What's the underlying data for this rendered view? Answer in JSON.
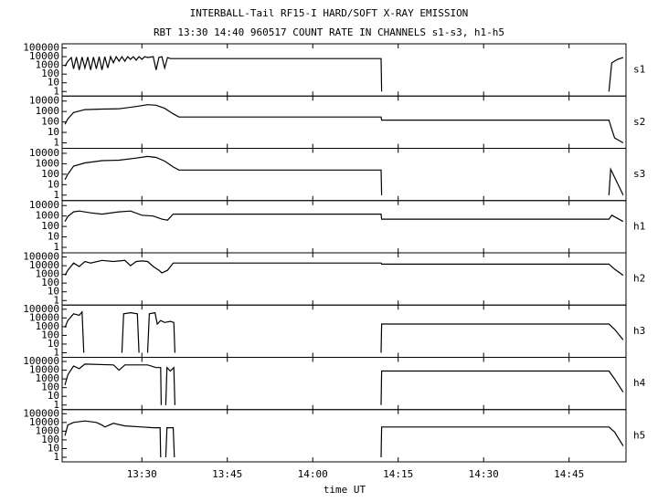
{
  "header": {
    "title": "INTERBALL-Tail RF15-I HARD/SOFT X-RAY EMISSION",
    "subtitle": "RBT 13:30 14:40 960517  COUNT RATE IN CHANNELS s1-s3, h1-h5"
  },
  "chart_data": [
    {
      "type": "line",
      "label": "s1",
      "log": true,
      "xlim": [
        796,
        895
      ],
      "ylim": [
        0.3,
        300000
      ],
      "yticks": [
        100000,
        10000,
        1000,
        100,
        10,
        1
      ],
      "x": [
        796.5,
        797,
        797.6,
        798,
        798.5,
        799,
        799.5,
        800,
        800.5,
        801,
        801.5,
        802,
        802.5,
        803,
        803.5,
        804,
        804.5,
        805,
        805.5,
        806,
        806.5,
        807,
        807.5,
        808,
        808.5,
        809,
        809.5,
        810,
        810.5,
        811,
        812,
        812.5,
        813,
        813.5,
        814,
        814.5,
        815,
        852,
        852.1,
        null,
        892,
        892.5,
        893.5,
        894.5
      ],
      "values": [
        800,
        3000,
        8000,
        400,
        9000,
        300,
        9000,
        500,
        9000,
        300,
        9000,
        400,
        10000,
        300,
        10000,
        500,
        10000,
        2000,
        10000,
        3000,
        10000,
        3000,
        10000,
        5000,
        10000,
        4000,
        10000,
        5000,
        10000,
        8000,
        10000,
        300,
        8000,
        10000,
        500,
        8000,
        6000,
        6000,
        1,
        null,
        1,
        2000,
        5000,
        8000
      ]
    },
    {
      "type": "line",
      "label": "s2",
      "log": true,
      "xlim": [
        796,
        895
      ],
      "ylim": [
        0.3,
        30000
      ],
      "yticks": [
        10000,
        1000,
        100,
        10,
        1
      ],
      "x": [
        796.5,
        797,
        798,
        800,
        803,
        806,
        809,
        811,
        812.5,
        814,
        815.5,
        816.5,
        852,
        852.1,
        892,
        892.5,
        893,
        894.5
      ],
      "values": [
        60,
        200,
        800,
        1500,
        1700,
        1800,
        3000,
        4500,
        4000,
        2000,
        600,
        300,
        300,
        150,
        150,
        20,
        3,
        1
      ]
    },
    {
      "type": "line",
      "label": "s3",
      "log": true,
      "xlim": [
        796,
        895
      ],
      "ylim": [
        0.3,
        30000
      ],
      "yticks": [
        10000,
        1000,
        100,
        10,
        1
      ],
      "x": [
        796.5,
        797,
        798,
        800,
        803,
        806,
        809,
        811,
        812.5,
        814,
        815.5,
        816.5,
        852,
        852.1,
        null,
        892,
        892.3,
        893,
        894.5
      ],
      "values": [
        30,
        100,
        600,
        1200,
        2000,
        2200,
        3500,
        5000,
        4000,
        1800,
        500,
        250,
        250,
        1,
        null,
        1,
        300,
        50,
        1
      ]
    },
    {
      "type": "line",
      "label": "h1",
      "log": true,
      "xlim": [
        796,
        895
      ],
      "ylim": [
        0.3,
        30000
      ],
      "yticks": [
        10000,
        1000,
        100,
        10,
        1
      ],
      "x": [
        796.5,
        797,
        798,
        799,
        801,
        803,
        806,
        808,
        810,
        812,
        813.5,
        814.5,
        815.5,
        852,
        852.1,
        892,
        892.5,
        894.5
      ],
      "values": [
        300,
        900,
        2500,
        3000,
        2000,
        1500,
        2500,
        3000,
        1200,
        1000,
        500,
        400,
        1500,
        1500,
        500,
        500,
        1200,
        300
      ]
    },
    {
      "type": "line",
      "label": "h2",
      "log": true,
      "xlim": [
        796,
        895
      ],
      "ylim": [
        0.3,
        300000
      ],
      "yticks": [
        100000,
        10000,
        1000,
        100,
        10,
        1
      ],
      "x": [
        796.5,
        797,
        798,
        799,
        800,
        801,
        803,
        805,
        807,
        808,
        809,
        810,
        811,
        812,
        813,
        813.5,
        814.5,
        815.5,
        852,
        852.1,
        892,
        893,
        894.5
      ],
      "values": [
        800,
        3000,
        20000,
        8000,
        30000,
        20000,
        40000,
        30000,
        40000,
        10000,
        30000,
        35000,
        30000,
        8000,
        3000,
        1500,
        3000,
        20000,
        20000,
        15000,
        15000,
        4000,
        800
      ]
    },
    {
      "type": "line",
      "label": "h3",
      "log": true,
      "xlim": [
        796,
        895
      ],
      "ylim": [
        0.3,
        300000
      ],
      "yticks": [
        100000,
        10000,
        1000,
        100,
        10,
        1
      ],
      "x": [
        796.5,
        797,
        798,
        799,
        799.5,
        799.8,
        null,
        806.5,
        806.8,
        808,
        809.2,
        809.5,
        null,
        811,
        811.3,
        812.3,
        812.7,
        813.3,
        814,
        815,
        815.6,
        815.8,
        null,
        852,
        852.1,
        892,
        893,
        894.5
      ],
      "values": [
        800,
        5000,
        30000,
        20000,
        50000,
        1,
        null,
        1,
        30000,
        40000,
        30000,
        1,
        null,
        1,
        30000,
        40000,
        2000,
        5000,
        3000,
        4000,
        3000,
        1,
        null,
        1,
        2000,
        2000,
        500,
        30
      ]
    },
    {
      "type": "line",
      "label": "h4",
      "log": true,
      "xlim": [
        796,
        895
      ],
      "ylim": [
        0.3,
        300000
      ],
      "yticks": [
        100000,
        10000,
        1000,
        100,
        10,
        1
      ],
      "x": [
        796.5,
        797,
        798,
        799,
        800,
        805,
        806,
        807,
        811,
        812.5,
        813.3,
        813.4,
        null,
        814.2,
        814.4,
        815,
        815.6,
        815.8,
        null,
        852,
        852.1,
        892,
        893,
        894.5
      ],
      "values": [
        200,
        3000,
        30000,
        15000,
        50000,
        40000,
        10000,
        40000,
        40000,
        20000,
        20000,
        1,
        null,
        1,
        20000,
        8000,
        20000,
        1,
        null,
        1,
        8000,
        8000,
        1000,
        30
      ]
    },
    {
      "type": "line",
      "label": "h5",
      "log": true,
      "xlim": [
        796,
        895
      ],
      "ylim": [
        0.3,
        300000
      ],
      "yticks": [
        100000,
        10000,
        1000,
        100,
        10,
        1
      ],
      "x": [
        796.5,
        797,
        798,
        800,
        802,
        803,
        803.5,
        805,
        807,
        810,
        812,
        813.2,
        813.3,
        null,
        814.2,
        814.4,
        815.5,
        815.7,
        null,
        852,
        852.1,
        892,
        893,
        894.5
      ],
      "values": [
        300,
        5000,
        10000,
        15000,
        10000,
        5000,
        3000,
        8000,
        4000,
        3000,
        2500,
        2500,
        1,
        null,
        1,
        2500,
        2500,
        1,
        null,
        1,
        3000,
        3000,
        800,
        20
      ]
    }
  ],
  "x_axis": {
    "label": "time UT",
    "xticks": [
      {
        "value": 810,
        "label": "13:30"
      },
      {
        "value": 825,
        "label": "13:45"
      },
      {
        "value": 840,
        "label": "14:00"
      },
      {
        "value": 855,
        "label": "14:15"
      },
      {
        "value": 870,
        "label": "14:30"
      },
      {
        "value": 885,
        "label": "14:45"
      }
    ]
  }
}
